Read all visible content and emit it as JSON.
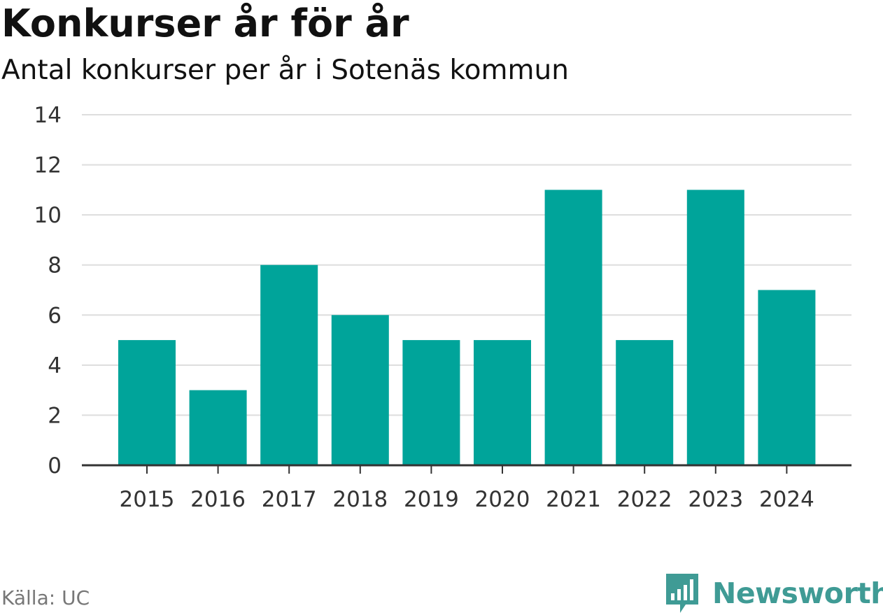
{
  "header": {
    "title": "Konkurser år för år",
    "subtitle": "Antal konkurser per år i Sotenäs kommun"
  },
  "footer": {
    "source": "Källa: UC",
    "brand": "Newsworthy",
    "brand_icon": "bar-chart-speech-bubble-icon",
    "brand_color": "#3f9b95"
  },
  "chart_data": {
    "type": "bar",
    "title": "Konkurser år för år",
    "subtitle": "Antal konkurser per år i Sotenäs kommun",
    "categories": [
      "2015",
      "2016",
      "2017",
      "2018",
      "2019",
      "2020",
      "2021",
      "2022",
      "2023",
      "2024"
    ],
    "values": [
      5,
      3,
      8,
      6,
      5,
      5,
      11,
      5,
      11,
      7
    ],
    "ylim": [
      0,
      14
    ],
    "yticks": [
      0,
      2,
      4,
      6,
      8,
      10,
      12,
      14
    ],
    "xlabel": "",
    "ylabel": "",
    "grid": true,
    "legend": "none",
    "bar_color": "#00a49a",
    "gridline_color": "#dddddd",
    "axis_color": "#333333"
  }
}
